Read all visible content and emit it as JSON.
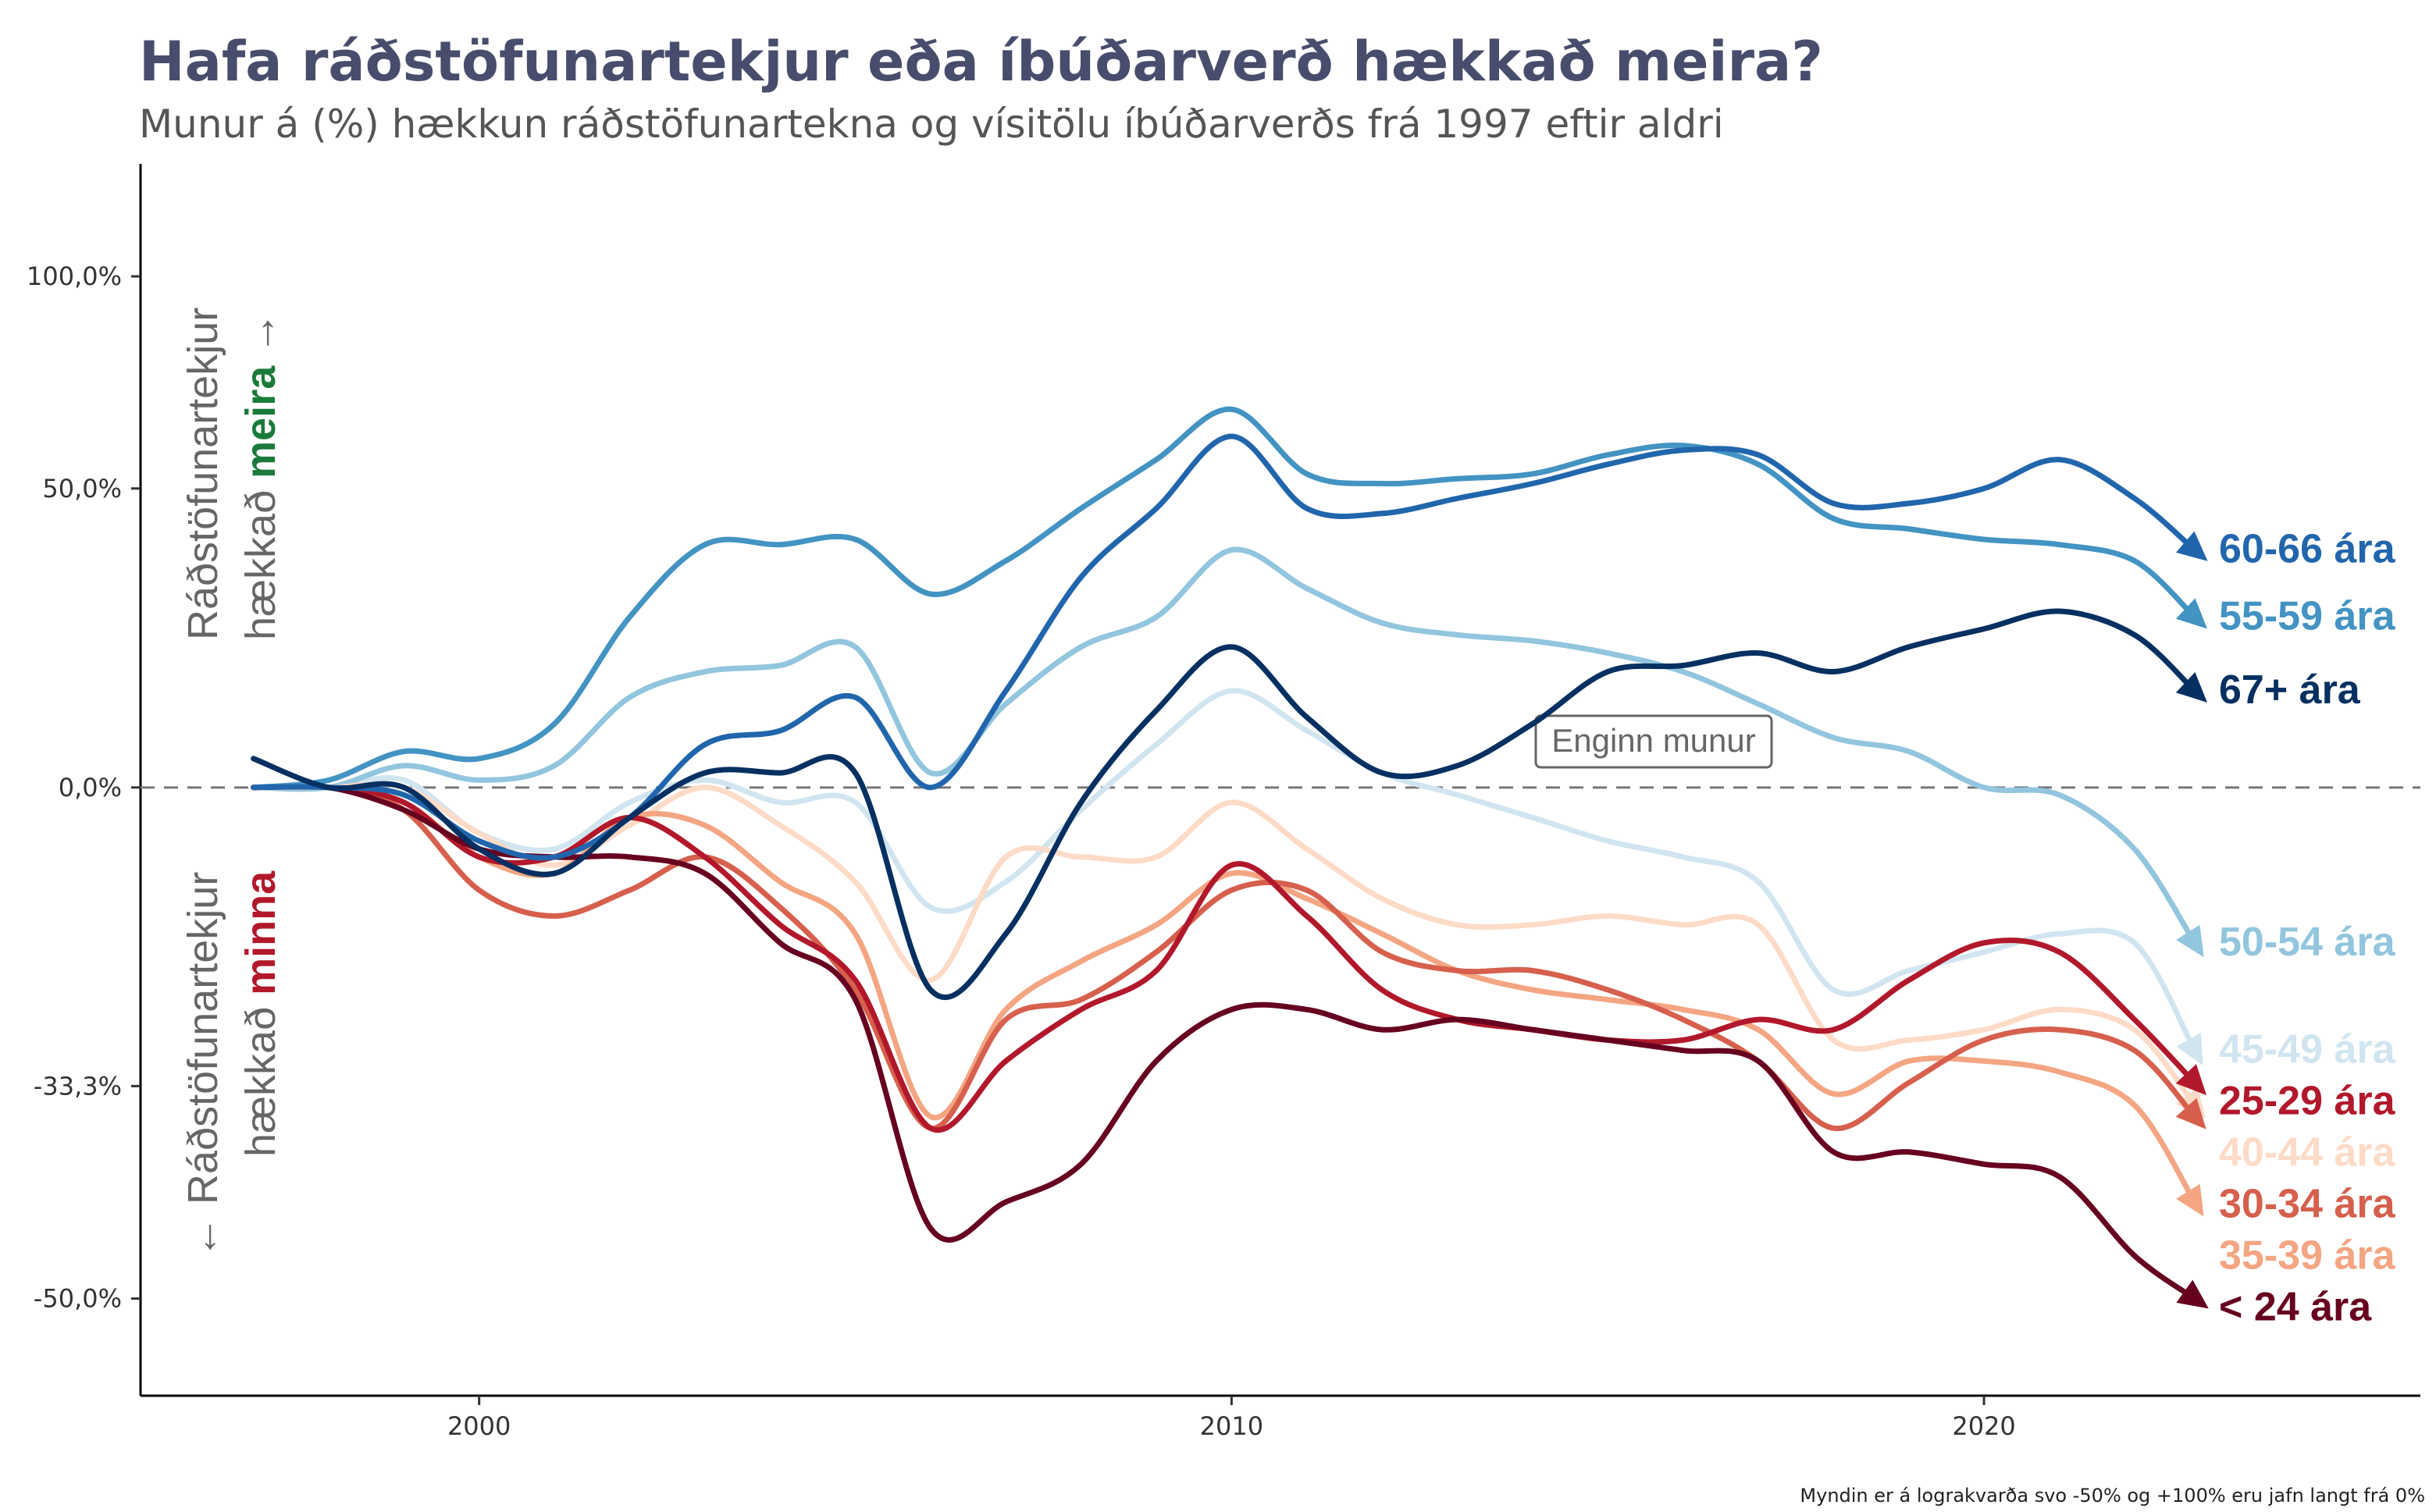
{
  "title": "Hafa ráðstöfunartekjur eða íbúðarverð hækkað meira?",
  "subtitle": "Munur á (%) hækkun ráðstöfunartekna og vísitölu íbúðarverðs frá 1997 eftir aldri",
  "caption": "Myndin er á lograkvarða svo -50% og +100% eru jafn langt frá 0%",
  "annotations": {
    "zero_label": "Enginn munur",
    "upper_text": "Ráðstöfunartekjur",
    "upper_text2": "hækkað",
    "upper_highlight": "meira",
    "upper_arrow": "→",
    "lower_text": "Ráðstöfunartekjur",
    "lower_text2": "hækkað",
    "lower_highlight": "minna",
    "lower_arrow": "←"
  },
  "colors": {
    "meira": "#1a7a3a",
    "minna": "#b2182b",
    "annotation_gray": "#666666",
    "zero_line": "#777777"
  },
  "chart_data": {
    "type": "line",
    "x_scale": "linear (year)",
    "y_scale": "log ratio",
    "xlim": [
      1995.5,
      2025.8
    ],
    "ylim_log2": [
      -1.19,
      1.22
    ],
    "x_ticks": [
      {
        "value": 2000,
        "label": "2000"
      },
      {
        "value": 2010,
        "label": "2010"
      },
      {
        "value": 2020,
        "label": "2020"
      }
    ],
    "y_ticks": [
      {
        "value": 1.0,
        "label": "100,0%"
      },
      {
        "value": 0.5,
        "label": "50,0%"
      },
      {
        "value": 0.0,
        "label": "0,0%"
      },
      {
        "value": -0.333,
        "label": "-33,3%"
      },
      {
        "value": -0.5,
        "label": "-50,0%"
      }
    ],
    "reference_line": 0,
    "grid": false,
    "series": [
      {
        "name": "60-66 ára",
        "color": "#2166ac",
        "x": [
          1997,
          1998,
          1999,
          2000,
          2001,
          2002,
          2003,
          2004,
          2005,
          2006,
          2007,
          2008,
          2009,
          2010,
          2011,
          2012,
          2013,
          2014,
          2015,
          2016,
          2017,
          2018,
          2019,
          2020,
          2021,
          2022,
          2022.8
        ],
        "y": [
          0.0,
          0.0,
          -0.01,
          -0.07,
          -0.09,
          -0.04,
          0.06,
          0.08,
          0.13,
          0.0,
          0.14,
          0.33,
          0.46,
          0.61,
          0.46,
          0.45,
          0.48,
          0.51,
          0.55,
          0.58,
          0.57,
          0.47,
          0.47,
          0.5,
          0.56,
          0.48,
          0.38
        ]
      },
      {
        "name": "55-59 ára",
        "color": "#4393c3",
        "x": [
          1997,
          1998,
          1999,
          2000,
          2001,
          2002,
          2003,
          2004,
          2005,
          2006,
          2007,
          2008,
          2009,
          2010,
          2011,
          2012,
          2013,
          2014,
          2015,
          2016,
          2017,
          2018,
          2019,
          2020,
          2021,
          2022,
          2022.8
        ],
        "y": [
          0.0,
          0.01,
          0.05,
          0.04,
          0.09,
          0.26,
          0.39,
          0.39,
          0.4,
          0.3,
          0.36,
          0.46,
          0.56,
          0.67,
          0.53,
          0.51,
          0.52,
          0.53,
          0.57,
          0.59,
          0.55,
          0.44,
          0.42,
          0.4,
          0.39,
          0.36,
          0.26
        ]
      },
      {
        "name": "67+ ára",
        "color": "#053061",
        "x": [
          1997,
          1998,
          1999,
          2000,
          2001,
          2002,
          2003,
          2004,
          2005,
          2006,
          2007,
          2008,
          2009,
          2010,
          2011,
          2012,
          2013,
          2014,
          2015,
          2016,
          2017,
          2018,
          2019,
          2020,
          2021,
          2022,
          2022.8
        ],
        "y": [
          0.04,
          0.0,
          0.0,
          -0.08,
          -0.11,
          -0.04,
          0.02,
          0.02,
          0.02,
          -0.24,
          -0.18,
          -0.02,
          0.11,
          0.21,
          0.1,
          0.02,
          0.03,
          0.09,
          0.17,
          0.18,
          0.2,
          0.17,
          0.21,
          0.24,
          0.27,
          0.23,
          0.14
        ]
      },
      {
        "name": "50-54 ára",
        "color": "#92c5de",
        "x": [
          1997,
          1998,
          1999,
          2000,
          2001,
          2002,
          2003,
          2004,
          2005,
          2006,
          2007,
          2008,
          2009,
          2010,
          2011,
          2012,
          2013,
          2014,
          2015,
          2016,
          2017,
          2018,
          2019,
          2020,
          2021,
          2022,
          2022.8
        ],
        "y": [
          0.0,
          0.0,
          0.03,
          0.01,
          0.03,
          0.13,
          0.17,
          0.18,
          0.21,
          0.02,
          0.12,
          0.21,
          0.26,
          0.38,
          0.31,
          0.25,
          0.23,
          0.22,
          0.2,
          0.17,
          0.12,
          0.07,
          0.05,
          0.0,
          -0.01,
          -0.08,
          -0.19
        ]
      },
      {
        "name": "45-49 ára",
        "color": "#d1e5f0",
        "x": [
          1997,
          1998,
          1999,
          2000,
          2001,
          2002,
          2003,
          2004,
          2005,
          2006,
          2007,
          2008,
          2009,
          2010,
          2011,
          2012,
          2013,
          2014,
          2015,
          2016,
          2017,
          2018,
          2019,
          2020,
          2021,
          2022,
          2022.8
        ],
        "y": [
          0.0,
          0.0,
          0.01,
          -0.06,
          -0.08,
          -0.02,
          0.01,
          -0.02,
          -0.02,
          -0.15,
          -0.12,
          -0.03,
          0.06,
          0.14,
          0.08,
          0.02,
          -0.01,
          -0.04,
          -0.07,
          -0.09,
          -0.12,
          -0.24,
          -0.22,
          -0.2,
          -0.18,
          -0.19,
          -0.3
        ]
      },
      {
        "name": "25-29 ára",
        "color": "#b2182b",
        "x": [
          1997,
          1998,
          1999,
          2000,
          2001,
          2002,
          2003,
          2004,
          2005,
          2006,
          2007,
          2008,
          2009,
          2010,
          2011,
          2012,
          2013,
          2014,
          2015,
          2016,
          2017,
          2018,
          2019,
          2020,
          2021,
          2022,
          2022.8
        ],
        "y": [
          0.0,
          0.0,
          -0.02,
          -0.09,
          -0.09,
          -0.04,
          -0.09,
          -0.17,
          -0.23,
          -0.37,
          -0.31,
          -0.26,
          -0.22,
          -0.1,
          -0.16,
          -0.24,
          -0.27,
          -0.28,
          -0.29,
          -0.29,
          -0.27,
          -0.28,
          -0.23,
          -0.19,
          -0.2,
          -0.27,
          -0.33
        ]
      },
      {
        "name": "40-44 ára",
        "color": "#fddbc7",
        "x": [
          1997,
          1998,
          1999,
          2000,
          2001,
          2002,
          2003,
          2004,
          2005,
          2006,
          2007,
          2008,
          2009,
          2010,
          2011,
          2012,
          2013,
          2014,
          2015,
          2016,
          2017,
          2018,
          2019,
          2020,
          2021,
          2022,
          2022.8
        ],
        "y": [
          0.0,
          0.0,
          0.0,
          -0.06,
          -0.1,
          -0.05,
          0.0,
          -0.05,
          -0.12,
          -0.23,
          -0.09,
          -0.09,
          -0.09,
          -0.02,
          -0.08,
          -0.14,
          -0.17,
          -0.17,
          -0.16,
          -0.17,
          -0.17,
          -0.29,
          -0.29,
          -0.28,
          -0.26,
          -0.28,
          -0.35
        ]
      },
      {
        "name": "30-34 ára",
        "color": "#d6604d",
        "x": [
          1997,
          1998,
          1999,
          2000,
          2001,
          2002,
          2003,
          2004,
          2005,
          2006,
          2007,
          2008,
          2009,
          2010,
          2011,
          2012,
          2013,
          2014,
          2015,
          2016,
          2017,
          2018,
          2019,
          2020,
          2021,
          2022,
          2022.8
        ],
        "y": [
          0.0,
          0.0,
          -0.03,
          -0.13,
          -0.16,
          -0.13,
          -0.09,
          -0.15,
          -0.24,
          -0.37,
          -0.27,
          -0.25,
          -0.2,
          -0.13,
          -0.13,
          -0.2,
          -0.22,
          -0.22,
          -0.24,
          -0.27,
          -0.31,
          -0.37,
          -0.33,
          -0.29,
          -0.28,
          -0.3,
          -0.36
        ]
      },
      {
        "name": "35-39 ára",
        "color": "#f4a582",
        "x": [
          1997,
          1998,
          1999,
          2000,
          2001,
          2002,
          2003,
          2004,
          2005,
          2006,
          2007,
          2008,
          2009,
          2010,
          2011,
          2012,
          2013,
          2014,
          2015,
          2016,
          2017,
          2018,
          2019,
          2020,
          2021,
          2022,
          2022.8
        ],
        "y": [
          0.0,
          0.0,
          -0.02,
          -0.09,
          -0.11,
          -0.04,
          -0.05,
          -0.12,
          -0.18,
          -0.36,
          -0.26,
          -0.21,
          -0.17,
          -0.11,
          -0.14,
          -0.18,
          -0.22,
          -0.24,
          -0.25,
          -0.26,
          -0.28,
          -0.34,
          -0.31,
          -0.31,
          -0.32,
          -0.35,
          -0.43
        ]
      },
      {
        "name": "< 24 ára",
        "color": "#67001f",
        "x": [
          1997,
          1998,
          1999,
          2000,
          2001,
          2002,
          2003,
          2004,
          2005,
          2006,
          2007,
          2008,
          2009,
          2010,
          2011,
          2012,
          2013,
          2014,
          2015,
          2016,
          2017,
          2018,
          2019,
          2020,
          2021,
          2022,
          2022.8
        ],
        "y": [
          0.0,
          0.0,
          -0.03,
          -0.08,
          -0.09,
          -0.09,
          -0.11,
          -0.19,
          -0.25,
          -0.45,
          -0.43,
          -0.4,
          -0.31,
          -0.26,
          -0.26,
          -0.28,
          -0.27,
          -0.28,
          -0.29,
          -0.3,
          -0.31,
          -0.39,
          -0.39,
          -0.4,
          -0.41,
          -0.47,
          -0.5
        ]
      }
    ]
  }
}
